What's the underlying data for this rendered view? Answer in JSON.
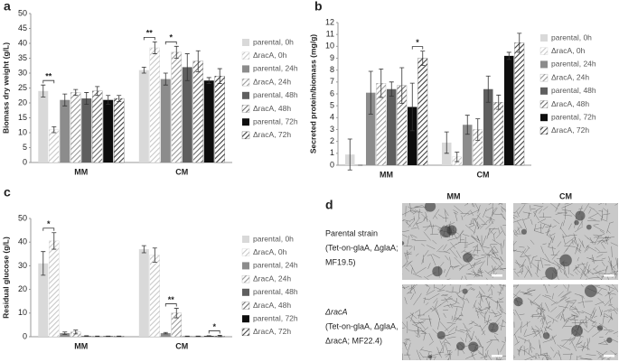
{
  "chart_data": [
    {
      "type": "bar",
      "label": "a",
      "y_label": "Biomass dry weight (g/L)",
      "categories": [
        "MM",
        "CM"
      ],
      "ylim": [
        0,
        50
      ],
      "yticks": [
        0,
        5,
        10,
        15,
        20,
        25,
        30,
        35,
        40,
        45,
        50
      ],
      "series": [
        {
          "name": "parental, 0h",
          "color": "#d9d9d9",
          "values": [
            24,
            31
          ],
          "errors": [
            2,
            1
          ]
        },
        {
          "name": "ΔracA, 0h",
          "color": "#c8c8c8",
          "hatch": true,
          "values": [
            11,
            38.5
          ],
          "errors": [
            1,
            2
          ]
        },
        {
          "name": "parental, 24h",
          "color": "#8c8c8c",
          "values": [
            21,
            28
          ],
          "errors": [
            2,
            2
          ]
        },
        {
          "name": "ΔracA, 24h",
          "color": "#9a9a9a",
          "hatch": true,
          "values": [
            23.5,
            37
          ],
          "errors": [
            1,
            2
          ]
        },
        {
          "name": "parental, 48h",
          "color": "#5f5f5f",
          "values": [
            21.5,
            32
          ],
          "errors": [
            2,
            4.5
          ]
        },
        {
          "name": "ΔracA, 48h",
          "color": "#6e6e6e",
          "hatch": true,
          "values": [
            24,
            34
          ],
          "errors": [
            1.5,
            3.5
          ]
        },
        {
          "name": "parental, 72h",
          "color": "#0d0d0d",
          "values": [
            21,
            27.5
          ],
          "errors": [
            1.5,
            1
          ]
        },
        {
          "name": "ΔracA, 72h",
          "color": "#404040",
          "hatch": true,
          "values": [
            21.5,
            29
          ],
          "errors": [
            1,
            2.5
          ]
        }
      ],
      "annotations": [
        "**",
        "**",
        "*"
      ]
    },
    {
      "type": "bar",
      "label": "b",
      "y_label": "Secreted protein/biomass (mg/g)",
      "categories": [
        "MM",
        "CM"
      ],
      "ylim": [
        0,
        12
      ],
      "yticks": [
        0,
        1,
        2,
        3,
        4,
        5,
        6,
        7,
        8,
        9,
        10,
        11,
        12
      ],
      "series": [
        {
          "name": "parental, 0h",
          "color": "#d9d9d9",
          "values": [
            0.9,
            1.9
          ],
          "errors": [
            1.3,
            0.9
          ]
        },
        {
          "name": "ΔracA, 0h",
          "color": "#c8c8c8",
          "hatch": true,
          "values": [
            0,
            0.7
          ],
          "errors": [
            0,
            0.4
          ]
        },
        {
          "name": "parental, 24h",
          "color": "#8c8c8c",
          "values": [
            6.1,
            3.4
          ],
          "errors": [
            1.8,
            0.8
          ]
        },
        {
          "name": "ΔracA, 24h",
          "color": "#9a9a9a",
          "hatch": true,
          "values": [
            6.9,
            3.0
          ],
          "errors": [
            1.2,
            0.9
          ]
        },
        {
          "name": "parental, 48h",
          "color": "#5f5f5f",
          "values": [
            6.4,
            6.4
          ],
          "errors": [
            0.6,
            1.1
          ]
        },
        {
          "name": "ΔracA, 48h",
          "color": "#6e6e6e",
          "hatch": true,
          "values": [
            6.7,
            5.3
          ],
          "errors": [
            1.5,
            0.6
          ]
        },
        {
          "name": "parental, 72h",
          "color": "#0d0d0d",
          "values": [
            4.9,
            9.2
          ],
          "errors": [
            2,
            0.3
          ]
        },
        {
          "name": "ΔracA, 72h",
          "color": "#404040",
          "hatch": true,
          "values": [
            9.0,
            10.3
          ],
          "errors": [
            0.6,
            0.8
          ]
        }
      ],
      "annotations": [
        "*"
      ]
    },
    {
      "type": "bar",
      "label": "c",
      "y_label": "Residual glucose (g/L)",
      "categories": [
        "MM",
        "CM"
      ],
      "ylim": [
        0,
        50
      ],
      "yticks": [
        0,
        10,
        20,
        30,
        40,
        50
      ],
      "series": [
        {
          "name": "parental, 0h",
          "color": "#d9d9d9",
          "values": [
            31,
            37
          ],
          "errors": [
            5,
            1.5
          ]
        },
        {
          "name": "ΔracA, 0h",
          "color": "#c8c8c8",
          "hatch": true,
          "values": [
            40.5,
            34.5
          ],
          "errors": [
            3.5,
            3
          ]
        },
        {
          "name": "parental, 24h",
          "color": "#8c8c8c",
          "values": [
            1.5,
            1.5
          ],
          "errors": [
            0.5,
            0.3
          ]
        },
        {
          "name": "ΔracA, 24h",
          "color": "#9a9a9a",
          "hatch": true,
          "values": [
            2,
            10
          ],
          "errors": [
            0.8,
            2
          ]
        },
        {
          "name": "parental, 48h",
          "color": "#5f5f5f",
          "values": [
            0.3,
            0.2
          ],
          "errors": [
            0.1,
            0.1
          ]
        },
        {
          "name": "ΔracA, 48h",
          "color": "#6e6e6e",
          "hatch": true,
          "values": [
            0.2,
            0.2
          ],
          "errors": [
            0.1,
            0.1
          ]
        },
        {
          "name": "parental, 72h",
          "color": "#0d0d0d",
          "values": [
            0.2,
            0.3
          ],
          "errors": [
            0.1,
            0.1
          ]
        },
        {
          "name": "ΔracA, 72h",
          "color": "#404040",
          "hatch": true,
          "values": [
            0.2,
            0.3
          ],
          "errors": [
            0.1,
            0.3
          ]
        }
      ],
      "annotations": [
        "*",
        "**",
        "*"
      ]
    }
  ],
  "panel_d": {
    "label": "d",
    "columns": [
      "MM",
      "CM"
    ],
    "rows": [
      {
        "name": "Parental strain",
        "details": [
          "(Tet-on-glaA, ΔglaA;",
          "MF19.5)"
        ]
      },
      {
        "name": "ΔracA",
        "details": [
          "(Tet-on-glaA, ΔglaA,",
          "ΔracA; MF22.4)"
        ]
      }
    ]
  }
}
